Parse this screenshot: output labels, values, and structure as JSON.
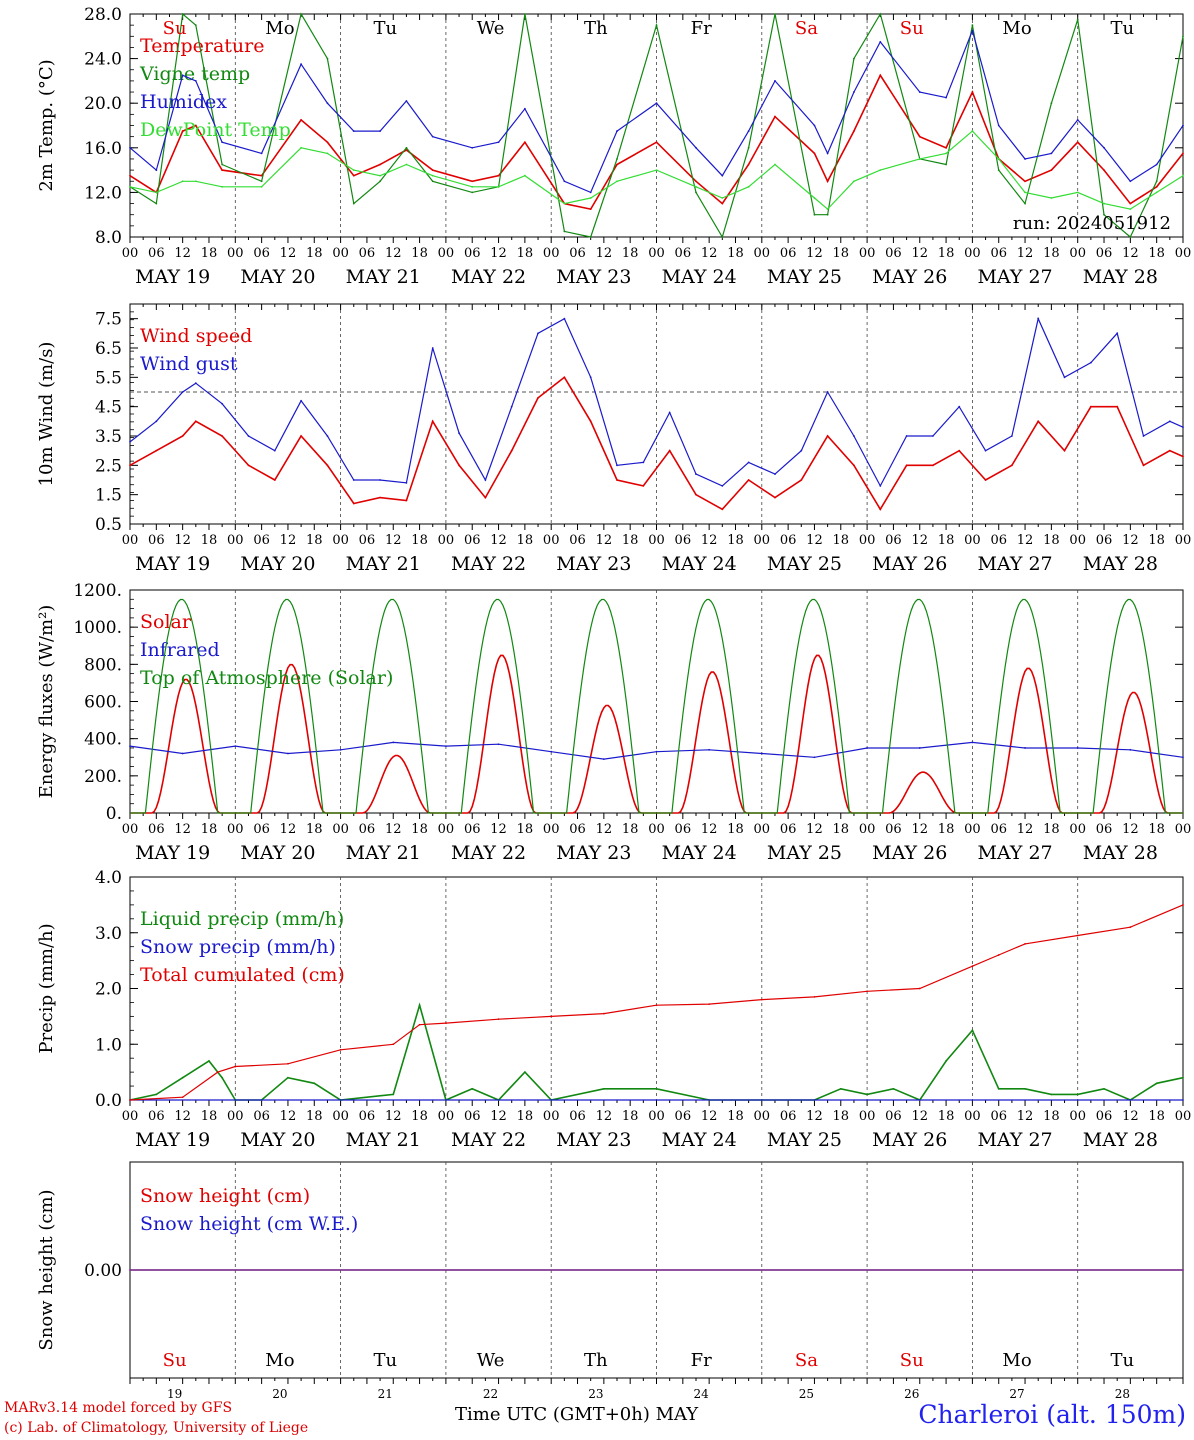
{
  "station": "Charleroi (alt. 150m)",
  "run_label": "run: 2024051912",
  "x_axis_label": "Time UTC (GMT+0h) MAY",
  "credits": [
    "MARv3.14 model forced by GFS",
    "(c) Lab. of Climatology, University of Liege"
  ],
  "hour_ticks": [
    "00",
    "06",
    "12",
    "18"
  ],
  "end_tick": "00",
  "dates": [
    "MAY 19",
    "MAY 20",
    "MAY 21",
    "MAY 22",
    "MAY 23",
    "MAY 24",
    "MAY 25",
    "MAY 26",
    "MAY 27",
    "MAY 28"
  ],
  "weekdays": [
    "Su",
    "Mo",
    "Tu",
    "We",
    "Th",
    "Fr",
    "Sa",
    "Su",
    "Mo",
    "Tu"
  ],
  "day_numbers": [
    "19",
    "20",
    "21",
    "22",
    "23",
    "24",
    "25",
    "26",
    "27",
    "28"
  ],
  "colors": {
    "red": "#e00000",
    "blue": "#1a1acc",
    "green": "#118811",
    "lightgreen": "#33dd33",
    "purple": "#7a2a8a",
    "weekend": "#e00000",
    "weekday": "#000000"
  },
  "chart_data": [
    {
      "type": "line",
      "ylabel": "2m Temp. (°C)",
      "ylim": [
        8,
        28
      ],
      "yticks": [
        "8.0",
        "12.0",
        "16.0",
        "20.0",
        "24.0",
        "28.0"
      ],
      "x_unit": "hours since MAY 19 00 UTC",
      "series": [
        {
          "name": "Temperature",
          "color": "red",
          "x": [
            0,
            6,
            12,
            15,
            21,
            30,
            39,
            45,
            51,
            57,
            63,
            69,
            78,
            84,
            90,
            99,
            105,
            111,
            120,
            129,
            135,
            141,
            147,
            156,
            159,
            165,
            171,
            180,
            186,
            192,
            198,
            204,
            210,
            216,
            222,
            228,
            234,
            240
          ],
          "y": [
            13.5,
            12.0,
            17.5,
            18.0,
            14.0,
            13.5,
            18.5,
            16.5,
            13.5,
            14.5,
            15.8,
            14.0,
            13.0,
            13.5,
            16.5,
            11.0,
            10.5,
            14.5,
            16.5,
            13.0,
            11.0,
            14.5,
            18.8,
            15.5,
            13.0,
            17.5,
            22.5,
            17.0,
            16.0,
            21.0,
            15.0,
            13.0,
            14.0,
            16.5,
            14.0,
            11.0,
            12.5,
            15.5
          ]
        },
        {
          "name": "Vigne temp",
          "color": "green",
          "x": [
            0,
            6,
            12,
            15,
            21,
            30,
            39,
            45,
            51,
            57,
            63,
            69,
            78,
            84,
            90,
            99,
            105,
            111,
            120,
            129,
            135,
            141,
            147,
            156,
            159,
            165,
            171,
            180,
            186,
            192,
            198,
            204,
            210,
            216,
            222,
            228,
            234,
            240
          ],
          "y": [
            12.5,
            11.0,
            28.0,
            27.0,
            14.5,
            13.0,
            28.0,
            24.0,
            11.0,
            13.0,
            16.0,
            13.0,
            12.0,
            12.5,
            28.0,
            8.5,
            8.0,
            15.0,
            27.0,
            12.0,
            8.0,
            16.0,
            28.0,
            10.0,
            10.0,
            24.0,
            28.0,
            15.0,
            14.5,
            27.0,
            14.0,
            11.0,
            20.0,
            27.5,
            10.0,
            8.0,
            13.0,
            26.0
          ]
        },
        {
          "name": "Humidex",
          "color": "blue",
          "x": [
            0,
            6,
            12,
            15,
            21,
            30,
            39,
            45,
            51,
            57,
            63,
            69,
            78,
            84,
            90,
            99,
            105,
            111,
            120,
            129,
            135,
            141,
            147,
            156,
            159,
            165,
            171,
            180,
            186,
            192,
            198,
            204,
            210,
            216,
            222,
            228,
            234,
            240
          ],
          "y": [
            16.0,
            14.0,
            22.5,
            22.0,
            16.5,
            15.5,
            23.5,
            20.0,
            17.5,
            17.5,
            20.2,
            17.0,
            16.0,
            16.5,
            19.5,
            13.0,
            12.0,
            17.5,
            20.0,
            16.0,
            13.5,
            17.5,
            22.0,
            18.0,
            15.5,
            21.0,
            25.5,
            21.0,
            20.5,
            26.5,
            18.0,
            15.0,
            15.5,
            18.5,
            16.0,
            13.0,
            14.5,
            18.0
          ]
        },
        {
          "name": "DewPoint Temp",
          "color": "lightgreen",
          "x": [
            0,
            6,
            12,
            15,
            21,
            30,
            39,
            45,
            51,
            57,
            63,
            69,
            78,
            84,
            90,
            99,
            105,
            111,
            120,
            129,
            135,
            141,
            147,
            156,
            159,
            165,
            171,
            180,
            186,
            192,
            198,
            204,
            210,
            216,
            222,
            228,
            234,
            240
          ],
          "y": [
            12.5,
            12.0,
            13.0,
            13.0,
            12.5,
            12.5,
            16.0,
            15.5,
            14.0,
            13.5,
            14.5,
            13.5,
            12.5,
            12.5,
            13.5,
            11.0,
            11.5,
            13.0,
            14.0,
            12.5,
            11.5,
            12.5,
            14.5,
            11.5,
            10.5,
            13.0,
            14.0,
            15.0,
            15.5,
            17.5,
            15.0,
            12.0,
            11.5,
            12.0,
            11.0,
            10.5,
            12.0,
            13.5
          ]
        }
      ]
    },
    {
      "type": "line",
      "ylabel": "10m Wind (m/s)",
      "ylim": [
        0.5,
        8.0
      ],
      "yticks": [
        "0.5",
        "1.5",
        "2.5",
        "3.5",
        "4.5",
        "5.5",
        "6.5",
        "7.5"
      ],
      "reference_line": 5.0,
      "x_unit": "hours since MAY 19 00 UTC",
      "series": [
        {
          "name": "Wind speed",
          "color": "red",
          "x": [
            0,
            6,
            12,
            15,
            21,
            27,
            33,
            39,
            45,
            51,
            57,
            63,
            69,
            75,
            81,
            87,
            93,
            99,
            105,
            111,
            117,
            123,
            129,
            135,
            141,
            147,
            153,
            159,
            165,
            171,
            177,
            183,
            189,
            195,
            201,
            207,
            213,
            219,
            225,
            231,
            237,
            240
          ],
          "y": [
            2.5,
            3.0,
            3.5,
            4.0,
            3.5,
            2.5,
            2.0,
            3.5,
            2.5,
            1.2,
            1.4,
            1.3,
            4.0,
            2.5,
            1.4,
            3.0,
            4.8,
            5.5,
            4.0,
            2.0,
            1.8,
            3.0,
            1.5,
            1.0,
            2.0,
            1.4,
            2.0,
            3.5,
            2.5,
            1.0,
            2.5,
            2.5,
            3.0,
            2.0,
            2.5,
            4.0,
            3.0,
            4.5,
            4.5,
            2.5,
            3.0,
            2.8
          ]
        },
        {
          "name": "Wind gust",
          "color": "blue",
          "x": [
            0,
            6,
            12,
            15,
            21,
            27,
            33,
            39,
            45,
            51,
            57,
            63,
            69,
            75,
            81,
            87,
            93,
            99,
            105,
            111,
            117,
            123,
            129,
            135,
            141,
            147,
            153,
            159,
            165,
            171,
            177,
            183,
            189,
            195,
            201,
            207,
            213,
            219,
            225,
            231,
            237,
            240
          ],
          "y": [
            3.3,
            4.0,
            5.0,
            5.3,
            4.6,
            3.5,
            3.0,
            4.7,
            3.5,
            2.0,
            2.0,
            1.9,
            6.5,
            3.6,
            2.0,
            4.5,
            7.0,
            7.5,
            5.5,
            2.5,
            2.6,
            4.3,
            2.2,
            1.8,
            2.6,
            2.2,
            3.0,
            5.0,
            3.5,
            1.8,
            3.5,
            3.5,
            4.5,
            3.0,
            3.5,
            7.5,
            5.5,
            6.0,
            7.0,
            3.5,
            4.0,
            3.8
          ]
        }
      ]
    },
    {
      "type": "line",
      "ylabel": "Energy fluxes (W/m²)",
      "ylim": [
        0,
        1200
      ],
      "yticks": [
        "0.",
        "200.",
        "400.",
        "600.",
        "800.",
        "1000.",
        "1200."
      ],
      "x_unit": "hours since MAY 19 00 UTC",
      "series": [
        {
          "name": "Solar",
          "color": "red",
          "day_peaks": [
            720,
            800,
            310,
            850,
            580,
            760,
            850,
            220,
            780,
            650
          ],
          "peak_hour": 12.5
        },
        {
          "name": "Infrared",
          "color": "blue",
          "x": [
            0,
            12,
            24,
            36,
            48,
            60,
            72,
            84,
            96,
            108,
            120,
            132,
            144,
            156,
            168,
            180,
            192,
            204,
            216,
            228,
            240
          ],
          "y": [
            360,
            320,
            360,
            320,
            340,
            380,
            360,
            370,
            330,
            290,
            330,
            340,
            320,
            300,
            350,
            350,
            380,
            350,
            350,
            340,
            300
          ]
        },
        {
          "name": "Top of Atmosphere (Solar)",
          "color": "green",
          "day_peak": 1150,
          "sunrise_hour": 3.5,
          "sunset_hour": 20.0
        }
      ]
    },
    {
      "type": "line",
      "ylabel": "Precip (mm/h)",
      "ylim": [
        0,
        4.0
      ],
      "yticks": [
        "0.0",
        "1.0",
        "2.0",
        "3.0",
        "4.0"
      ],
      "x_unit": "hours since MAY 19 00 UTC",
      "series": [
        {
          "name": "Liquid precip (mm/h)",
          "color": "green",
          "x": [
            0,
            6,
            12,
            18,
            21,
            24,
            30,
            36,
            42,
            48,
            60,
            66,
            72,
            78,
            84,
            90,
            96,
            108,
            120,
            132,
            144,
            156,
            162,
            168,
            174,
            180,
            186,
            192,
            198,
            204,
            210,
            216,
            222,
            228,
            234,
            240
          ],
          "y": [
            0.0,
            0.1,
            0.4,
            0.7,
            0.4,
            0.0,
            0.0,
            0.4,
            0.3,
            0.0,
            0.1,
            1.7,
            0.0,
            0.2,
            0.0,
            0.5,
            0.0,
            0.2,
            0.2,
            0.0,
            0.0,
            0.0,
            0.2,
            0.1,
            0.2,
            0.0,
            0.7,
            1.25,
            0.2,
            0.2,
            0.1,
            0.1,
            0.2,
            0.0,
            0.3,
            0.4
          ]
        },
        {
          "name": "Snow precip (mm/h)",
          "color": "blue",
          "x": [
            0,
            240
          ],
          "y": [
            0.0,
            0.0
          ]
        },
        {
          "name": "Total cumulated (cm)",
          "color": "red",
          "x": [
            0,
            12,
            20,
            24,
            36,
            48,
            60,
            66,
            72,
            84,
            96,
            108,
            120,
            132,
            144,
            156,
            168,
            180,
            192,
            198,
            204,
            216,
            228,
            240
          ],
          "y": [
            0.0,
            0.05,
            0.5,
            0.6,
            0.65,
            0.9,
            1.0,
            1.35,
            1.38,
            1.45,
            1.5,
            1.55,
            1.7,
            1.72,
            1.8,
            1.85,
            1.95,
            2.0,
            2.4,
            2.6,
            2.8,
            2.95,
            3.1,
            3.5
          ]
        }
      ]
    },
    {
      "type": "line",
      "ylabel": "Snow height (cm)",
      "yticks": [
        "0.00"
      ],
      "x_unit": "hours since MAY 19 00 UTC",
      "series": [
        {
          "name": "Snow height (cm)",
          "color": "red",
          "x": [
            0,
            240
          ],
          "y": [
            0.0,
            0.0
          ]
        },
        {
          "name": "Snow height (cm W.E.)",
          "color": "blue",
          "x": [
            0,
            240
          ],
          "y": [
            0.0,
            0.0
          ]
        }
      ]
    }
  ]
}
